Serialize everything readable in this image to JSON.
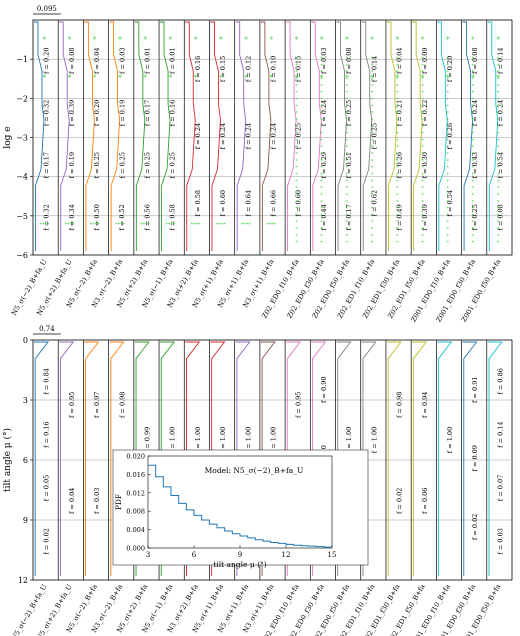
{
  "chart_data": [
    {
      "type": "line",
      "title": "",
      "ylabel": "log e",
      "ylim": [
        -6,
        0
      ],
      "yticks": [
        -1,
        -2,
        -3,
        -4,
        -5,
        -6
      ],
      "scale_bar_label": "0.095",
      "grid": "horizontal",
      "bin_labels": [
        [
          "f = 0.20",
          "f = 0.32",
          "f = 0.17",
          "f = 0.32"
        ],
        [
          "f = 0.08",
          "f = 0.39",
          "f = 0.19",
          "f = 0.34"
        ],
        [
          "f = 0.04",
          "f = 0.20",
          "f = 0.25",
          "f = 0.50"
        ],
        [
          "f = 0.03",
          "f = 0.19",
          "f = 0.25",
          "f = 0.52"
        ],
        [
          "f = 0.01",
          "f = 0.17",
          "f = 0.25",
          "f = 0.56"
        ],
        [
          "f = 0.01",
          "f = 0.16",
          "f = 0.25",
          "f = 0.58"
        ],
        [
          "f = 0.16",
          "f = 0.24",
          "f = 0.58"
        ],
        [
          "f = 0.15",
          "f = 0.24",
          "f = 0.60"
        ],
        [
          "f = 0.12",
          "f = 0.24",
          "f = 0.64"
        ],
        [
          "f = 0.10",
          "f = 0.24",
          "f = 0.66"
        ],
        [
          "f = 0.15",
          "f = 0.25",
          "f = 0.60"
        ],
        [
          "f = 0.03",
          "f = 0.24",
          "f = 0.29",
          "f = 0.44"
        ],
        [
          "f = 0.08",
          "f = 0.25",
          "f = 0.51",
          "f = 0.17"
        ],
        [
          "f = 0.14",
          "f = 0.25",
          "f = 0.62"
        ],
        [
          "f = 0.04",
          "f = 0.21",
          "f = 0.26",
          "f = 0.49"
        ],
        [
          "f = 0.09",
          "f = 0.22",
          "f = 0.30",
          "f = 0.39"
        ],
        [
          "f = 0.20",
          "f = 0.26",
          "f = 0.54"
        ],
        [
          "f = 0.08",
          "f = 0.24",
          "f = 0.43",
          "f = 0.25"
        ],
        [
          "f = 0.14",
          "f = 0.24",
          "f = 0.54",
          "f = 0.08"
        ]
      ]
    },
    {
      "type": "line",
      "title": "",
      "ylabel": "tilt angle μ (°)",
      "ylim": [
        0,
        12
      ],
      "yticks": [
        0,
        3,
        6,
        9,
        12
      ],
      "scale_bar_label": "0.74",
      "grid": "horizontal",
      "bin_labels": [
        [
          "f = 0.84",
          "f = 0.16",
          "f = 0.05",
          "f = 0.02"
        ],
        [
          "f = 0.95",
          "f = 0.04"
        ],
        [
          "f = 0.97",
          "f = 0.03"
        ],
        [
          "f = 0.98",
          "f = 0.02"
        ],
        [
          "f = 0.99"
        ],
        [
          "f = 1.00"
        ],
        [
          "f = 1.00"
        ],
        [
          "f = 1.00"
        ],
        [
          "f = 1.00"
        ],
        [
          "f = 1.00"
        ],
        [
          "f = 0.95",
          "f = 0.05"
        ],
        [
          "f = 0.90",
          "f = 0.10",
          "f = 0.03"
        ],
        [
          "f = 1.00"
        ],
        [
          "f = 1.00"
        ],
        [
          "f = 0.98",
          "f = 0.02"
        ],
        [
          "f = 0.94",
          "f = 0.06"
        ],
        [
          "f = 1.00"
        ],
        [
          "f = 0.91",
          "f = 0.09",
          "f = 0.02"
        ],
        [
          "f = 0.86",
          "f = 0.14",
          "f = 0.07",
          "f = 0.03"
        ]
      ]
    },
    {
      "type": "line",
      "title": "Model: N5_σ(−2)_B+fa_U",
      "xlabel": "tilt angle μ (°)",
      "ylabel": "PDF",
      "xlim": [
        3,
        15
      ],
      "ylim": [
        0,
        0.02
      ],
      "xticks": [
        3,
        6,
        9,
        12,
        15
      ],
      "yticks": [
        0.0,
        0.004,
        0.008,
        0.012,
        0.016,
        0.02
      ],
      "series": [
        {
          "x": [
            3,
            3.5,
            4,
            4.5,
            5,
            5.5,
            6,
            6.5,
            7,
            7.5,
            8,
            8.5,
            9,
            9.5,
            10,
            10.5,
            11,
            11.5,
            12,
            12.5,
            13,
            13.5,
            14,
            14.5,
            15
          ],
          "y": [
            0.018,
            0.0155,
            0.0133,
            0.0114,
            0.0097,
            0.0083,
            0.0071,
            0.0061,
            0.0052,
            0.0044,
            0.0037,
            0.0031,
            0.0026,
            0.0022,
            0.0018,
            0.0015,
            0.0012,
            0.001,
            0.0008,
            0.0006,
            0.0005,
            0.0004,
            0.0003,
            0.0002,
            0.0001
          ]
        }
      ]
    }
  ],
  "models": [
    "N5_σ(−2)_B+fa_U",
    "N5_σ(+2)_B+fa_U",
    "N5_σ(−2)_B+fa",
    "N3_σ(−2)_B+fa",
    "N5_σ(+2)_B+fa",
    "N5_σ(−1)_B+fa",
    "N3_σ(+2)_B+fa",
    "N5_σ(+1)_B+fa",
    "N5_σ(+1)_B+fa",
    "N3_σ(+1)_B+fa",
    "Z02_ED0_f10_B+fa",
    "Z02_ED0_f30_B+fa",
    "Z02_ED0_f50_B+fa",
    "Z02_ED1_f10_B+fa",
    "Z02_ED1_f30_B+fa",
    "Z02_ED1_f50_B+fa",
    "Z001_ED0_f10_B+fa",
    "Z001_ED0_f30_B+fa",
    "Z001_ED0_f50_B+fa"
  ],
  "colors": [
    "#1f77b4",
    "#9467bd",
    "#ff7f0e",
    "#ff7f0e",
    "#2ca02c",
    "#2ca02c",
    "#d62728",
    "#d62728",
    "#9467bd",
    "#8c564b",
    "#e377c2",
    "#e377c2",
    "#7f7f7f",
    "#7f7f7f",
    "#bcbd22",
    "#bcbd22",
    "#17becf",
    "#1f77b4",
    "#17becf"
  ],
  "marker_color": "#33cc33"
}
